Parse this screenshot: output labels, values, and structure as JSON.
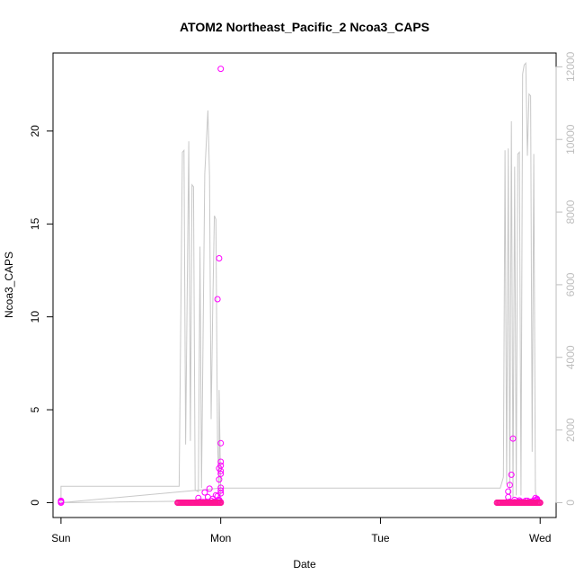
{
  "chart_data": {
    "type": "scatter",
    "title": "ATOM2 Northeast_Pacific_2 Ncoa3_CAPS",
    "xlabel": "Date",
    "ylabel": "Ncoa3_CAPS",
    "x_ticks": [
      "Sun",
      "Mon",
      "Tue",
      "Wed"
    ],
    "xlim": [
      -0.05,
      3.1
    ],
    "ylim": [
      -0.8,
      24.2
    ],
    "y_ticks": [
      0,
      5,
      10,
      15,
      20
    ],
    "y2_ticks": [
      0,
      2000,
      4000,
      6000,
      8000,
      10000,
      12000
    ],
    "y2lim": [
      -409,
      12380
    ],
    "grid": false,
    "legend": "none",
    "colors": {
      "points": "#ff00ff",
      "points_dense": "#ff1493",
      "line": "#c8c8c8",
      "axis": "#000000",
      "right_axis": "#bebebe"
    },
    "series": [
      {
        "type": "scatter",
        "axis": "left",
        "x": [
          0.0,
          0.0,
          0.0,
          0.73,
          0.76,
          0.79,
          0.82,
          0.85,
          0.87,
          0.88,
          0.89,
          0.9,
          0.91,
          0.92,
          0.93,
          0.94,
          0.95,
          0.96,
          0.97,
          0.98,
          0.99,
          1.0,
          1.0,
          0.86,
          0.9,
          0.93,
          0.97,
          0.99,
          1.0,
          1.0,
          1.0,
          0.99,
          1.0,
          1.0,
          1.0,
          0.98,
          0.95,
          0.92,
          0.98,
          0.99,
          1.0,
          1.0,
          1.0,
          0.99,
          2.73,
          2.75,
          2.77,
          2.79,
          2.8,
          2.81,
          2.82,
          2.83,
          2.84,
          2.85,
          2.86,
          2.87,
          2.88,
          2.89,
          2.9,
          2.91,
          2.92,
          2.93,
          2.94,
          2.95,
          2.96,
          2.97,
          2.98,
          2.99,
          3.0,
          2.8,
          2.81,
          2.82,
          2.83,
          2.8,
          2.84,
          2.87,
          2.92,
          2.96,
          2.97,
          2.98
        ],
        "y": [
          0.0,
          0.05,
          0.1,
          0.0,
          0.0,
          0.0,
          0.0,
          0.02,
          0.05,
          0.0,
          0.03,
          0.0,
          0.05,
          0.0,
          0.0,
          0.1,
          0.0,
          0.05,
          0.0,
          0.0,
          0.1,
          0.0,
          0.03,
          0.25,
          0.55,
          0.75,
          0.4,
          1.25,
          1.55,
          1.7,
          2.0,
          1.85,
          2.2,
          3.2,
          0.5,
          0.35,
          0.2,
          0.3,
          10.95,
          13.15,
          23.35,
          0.8,
          0.65,
          0.15,
          0.0,
          0.0,
          0.0,
          0.02,
          0.0,
          0.05,
          0.0,
          0.0,
          0.03,
          0.0,
          0.0,
          0.05,
          0.0,
          0.03,
          0.0,
          0.1,
          0.0,
          0.0,
          0.05,
          0.0,
          0.02,
          0.1,
          0.2,
          0.05,
          0.0,
          0.6,
          0.95,
          1.5,
          3.45,
          0.3,
          0.15,
          0.12,
          0.1,
          0.12,
          0.25,
          0.15
        ]
      },
      {
        "type": "line",
        "axis": "right",
        "x": [
          0.0,
          0.0,
          0.74,
          0.76,
          0.77,
          0.78,
          0.8,
          0.81,
          0.82,
          0.83,
          0.84,
          0.86,
          0.87,
          0.88,
          0.9,
          0.92,
          0.93,
          0.94,
          0.95,
          0.96,
          0.97,
          0.98,
          0.99,
          0.99,
          1.0,
          0.99,
          0.99,
          1.0,
          0.0,
          1.0,
          2.75,
          2.77,
          2.78,
          2.79,
          2.8,
          2.81,
          2.82,
          2.83,
          2.84,
          2.85,
          2.86,
          2.87,
          2.88,
          2.89,
          2.9,
          2.91,
          2.92,
          2.93,
          2.94,
          2.95,
          2.96,
          2.97,
          2.98,
          2.99,
          3.0
        ],
        "y": [
          0,
          450,
          450,
          9650,
          9700,
          1600,
          9950,
          1700,
          8750,
          8700,
          350,
          300,
          7050,
          400,
          9050,
          10800,
          9000,
          2300,
          5400,
          7900,
          7800,
          1700,
          350,
          3100,
          250,
          150,
          100,
          50,
          0,
          400,
          400,
          700,
          9700,
          500,
          9750,
          200,
          10500,
          150,
          9250,
          200,
          9600,
          9650,
          200,
          11800,
          12050,
          12100,
          9550,
          11250,
          11200,
          1400,
          9600,
          300,
          150,
          80,
          60
        ]
      }
    ]
  }
}
